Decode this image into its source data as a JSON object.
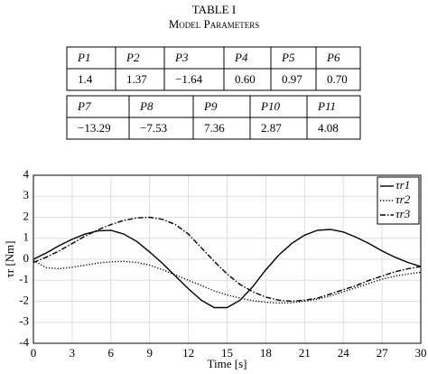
{
  "table": {
    "title": "TABLE I",
    "caption": "Model Parameters",
    "blocks": [
      {
        "header": [
          "P1",
          "P2",
          "P3",
          "P4",
          "P5",
          "P6"
        ],
        "values": [
          "1.4",
          "1.37",
          "−1.64",
          "0.60",
          "0.97",
          "0.70"
        ]
      },
      {
        "header": [
          "P7",
          "P8",
          "P9",
          "P10",
          "P11"
        ],
        "values": [
          "−13.29",
          "−7.53",
          "7.36",
          "2.87",
          "4.08"
        ]
      }
    ]
  },
  "chart_data": {
    "type": "line",
    "xlabel": "Time [s]",
    "ylabel": "τr [Nm]",
    "x": [
      0,
      1,
      2,
      3,
      4,
      5,
      6,
      7,
      8,
      9,
      10,
      11,
      12,
      13,
      14,
      15,
      16,
      17,
      18,
      19,
      20,
      21,
      22,
      23,
      24,
      25,
      26,
      27,
      28,
      29,
      30
    ],
    "series": [
      {
        "name": "τr1",
        "color": "#000000",
        "line_style": "solid",
        "values": [
          0.0,
          0.3,
          0.65,
          0.95,
          1.2,
          1.35,
          1.38,
          1.2,
          0.85,
          0.35,
          -0.2,
          -0.8,
          -1.4,
          -1.95,
          -2.3,
          -2.3,
          -1.95,
          -1.3,
          -0.5,
          0.2,
          0.75,
          1.15,
          1.38,
          1.42,
          1.3,
          1.05,
          0.75,
          0.4,
          0.1,
          -0.15,
          -0.35
        ]
      },
      {
        "name": "τr2",
        "color": "#000000",
        "line_style": "dotted",
        "values": [
          -0.05,
          -0.4,
          -0.45,
          -0.38,
          -0.28,
          -0.18,
          -0.12,
          -0.1,
          -0.15,
          -0.28,
          -0.5,
          -0.75,
          -1.0,
          -1.25,
          -1.5,
          -1.7,
          -1.85,
          -1.97,
          -2.05,
          -2.08,
          -2.07,
          -2.0,
          -1.9,
          -1.75,
          -1.55,
          -1.35,
          -1.15,
          -0.95,
          -0.8,
          -0.7,
          -0.62
        ]
      },
      {
        "name": "τr3",
        "color": "#000000",
        "line_style": "dashdot",
        "values": [
          -0.15,
          0.1,
          0.4,
          0.75,
          1.1,
          1.4,
          1.65,
          1.85,
          1.97,
          2.0,
          1.9,
          1.65,
          1.2,
          0.55,
          -0.1,
          -0.7,
          -1.2,
          -1.55,
          -1.8,
          -1.95,
          -2.0,
          -1.95,
          -1.85,
          -1.65,
          -1.45,
          -1.25,
          -1.0,
          -0.8,
          -0.6,
          -0.45,
          -0.35
        ]
      }
    ],
    "xlim": [
      0,
      30
    ],
    "xticks": [
      0,
      3,
      6,
      9,
      12,
      15,
      18,
      21,
      24,
      27,
      30
    ],
    "ylim": [
      -4,
      4
    ],
    "yticks": [
      -4,
      -3,
      -2,
      -1,
      0,
      1,
      2,
      3,
      4
    ],
    "grid": true,
    "legend": "upper-right"
  }
}
